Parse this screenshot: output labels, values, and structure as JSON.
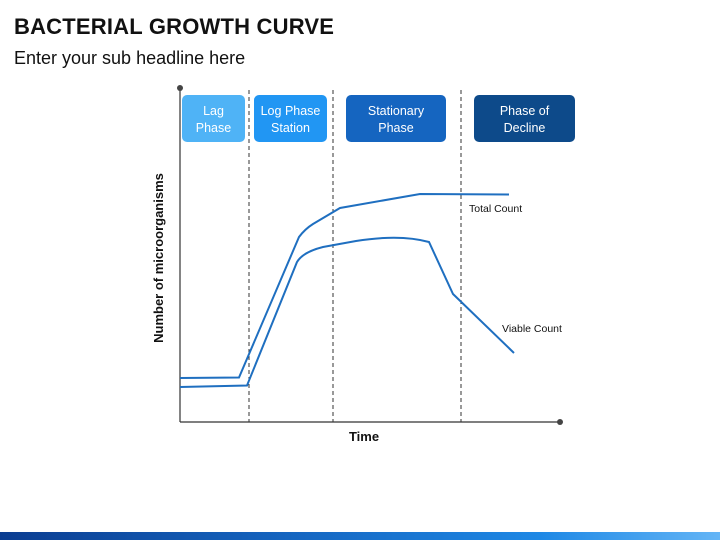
{
  "header": {
    "title": "BACTERIAL GROWTH CURVE",
    "subtitle": "Enter your sub headline here"
  },
  "phases": [
    {
      "line1": "Lag",
      "line2": "Phase",
      "color": "#4fb3f6"
    },
    {
      "line1": "Log Phase",
      "line2": "Station",
      "color": "#2196f3"
    },
    {
      "line1": "Stationary",
      "line2": "Phase",
      "color": "#1565c0"
    },
    {
      "line1": "Phase of",
      "line2": "Decline",
      "color": "#0d4a8a"
    }
  ],
  "axes": {
    "x_label": "Time",
    "y_label": "Number of microorganisms"
  },
  "curves": {
    "total_label": "Total Count",
    "viable_label": "Viable Count",
    "line_color": "#1f6fc0"
  }
}
